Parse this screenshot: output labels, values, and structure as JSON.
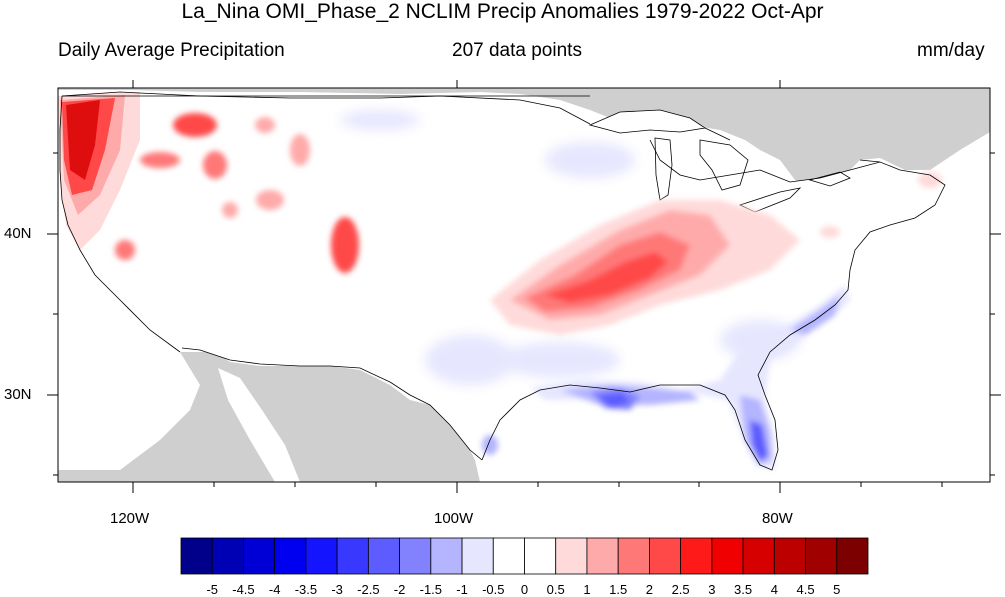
{
  "title": "La_Nina OMI_Phase_2 NCLIM Precip Anomalies 1979-2022 Oct-Apr",
  "left_subtitle": "Daily Average Precipitation",
  "center_subtitle": "207 data points",
  "right_subtitle": "mm/day",
  "lon_ticks": [
    "120W",
    "100W",
    "80W"
  ],
  "lat_ticks": [
    "40N",
    "30N"
  ],
  "colorbar": {
    "colors": [
      "#00008b",
      "#0000b4",
      "#0000d6",
      "#0000f0",
      "#1414ff",
      "#3838ff",
      "#5c5cff",
      "#8282ff",
      "#b4b4ff",
      "#e6e6ff",
      "#ffffff",
      "#ffffff",
      "#ffdada",
      "#ffaaaa",
      "#ff7878",
      "#ff4848",
      "#ff1a1a",
      "#f00000",
      "#d60000",
      "#bc0000",
      "#a00000",
      "#7d0000"
    ],
    "labels": [
      "-5",
      "-4.5",
      "-4",
      "-3.5",
      "-3",
      "-2.5",
      "-2",
      "-1.5",
      "-1",
      "-0.5",
      "0",
      "0.5",
      "1",
      "1.5",
      "2",
      "2.5",
      "3",
      "3.5",
      "4",
      "4.5",
      "5"
    ]
  },
  "colors": {
    "land_masked": "#cfcfcf",
    "ocean": "#ffffff",
    "outline": "#000000"
  }
}
